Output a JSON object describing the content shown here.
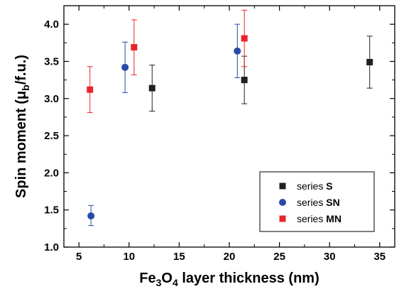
{
  "chart_data": {
    "type": "scatter",
    "title": "",
    "xlabel": {
      "prefix": "Fe",
      "sub1": "3",
      "mid": "O",
      "sub2": "4",
      "suffix": " layer thickness (nm)"
    },
    "ylabel": {
      "prefix": "Spin moment (μ",
      "sub": "b",
      "suffix": "/f.u.)"
    },
    "xlim": [
      3.5,
      36.5
    ],
    "ylim": [
      1.0,
      4.25
    ],
    "xticks": [
      "5",
      "10",
      "15",
      "20",
      "25",
      "30",
      "35"
    ],
    "yticks": [
      "1.0",
      "1.5",
      "2.0",
      "2.5",
      "3.0",
      "3.5",
      "4.0"
    ],
    "grid": false,
    "legend_position": "bottom-right",
    "series": [
      {
        "name": "series S",
        "name_plain": "series ",
        "name_bold": "S",
        "marker": "square",
        "color": "#231f20",
        "points": [
          {
            "x": 12.3,
            "y": 3.14,
            "err_low": 2.83,
            "err_high": 3.45
          },
          {
            "x": 21.5,
            "y": 3.25,
            "err_low": 2.93,
            "err_high": 3.57
          },
          {
            "x": 34.0,
            "y": 3.49,
            "err_low": 3.14,
            "err_high": 3.84
          }
        ]
      },
      {
        "name": "series SN",
        "name_plain": "series ",
        "name_bold": "SN",
        "marker": "circle",
        "color": "#2b4ba8",
        "points": [
          {
            "x": 6.2,
            "y": 1.42,
            "err_low": 1.29,
            "err_high": 1.56
          },
          {
            "x": 9.6,
            "y": 3.42,
            "err_low": 3.08,
            "err_high": 3.76
          },
          {
            "x": 20.8,
            "y": 3.64,
            "err_low": 3.28,
            "err_high": 4.0
          }
        ]
      },
      {
        "name": "series MN",
        "name_plain": "series ",
        "name_bold": "MN",
        "marker": "square",
        "color": "#e8242a",
        "points": [
          {
            "x": 6.1,
            "y": 3.12,
            "err_low": 2.81,
            "err_high": 3.43
          },
          {
            "x": 10.5,
            "y": 3.69,
            "err_low": 3.32,
            "err_high": 4.06
          },
          {
            "x": 21.5,
            "y": 3.81,
            "err_low": 3.43,
            "err_high": 4.19
          }
        ]
      }
    ]
  }
}
